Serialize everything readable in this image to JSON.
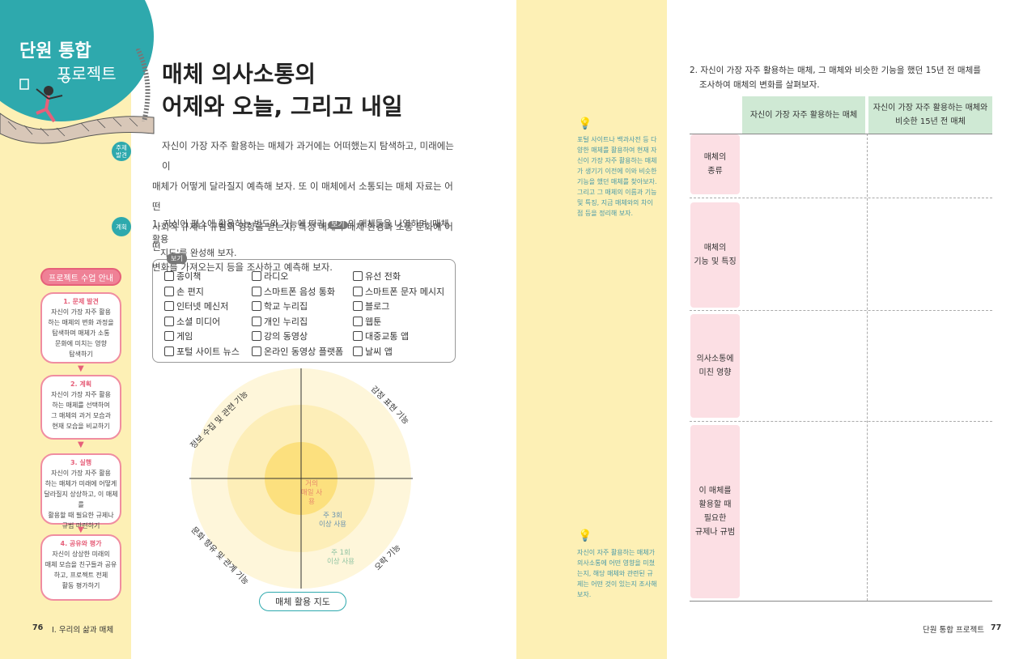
{
  "badge": {
    "line1": "단원 통합",
    "line2": "프로젝트"
  },
  "title": {
    "line1": "매체 의사소통의",
    "line2": "어제와 오늘, 그리고 내일"
  },
  "theme": {
    "tag": "주제\n발견",
    "lines": [
      "자신이 가장 자주 활용하는 매체가 과거에는 어떠했는지 탐색하고, 미래에는 이",
      "매체가 어떻게 달라질지 예측해 보자. 또 이 매체에서 소통되는 매체 자료는 어떤",
      "사회적 규제나 규범의 영향을 받는지, 특정 매체가 매체 환경과 소통 문화에 어떤",
      "변화를 가져오는지 등을 조사하고 예측해 보자."
    ]
  },
  "plan": {
    "tag": "계획",
    "q1_prefix": "1. 자신이 평소에 활용하는 빈도와 기능에 따라",
    "q1_bogi": "보기",
    "q1_suffix": "의 매체들을 나열하며 '매체 활용",
    "q1_line2": "지도'를 완성해 보자."
  },
  "bogi": {
    "label": "보기",
    "columns": [
      [
        "종이책",
        "손 편지",
        "인터넷 메신저",
        "소셜 미디어",
        "게임",
        "포털 사이트 뉴스"
      ],
      [
        "라디오",
        "스마트폰 음성 통화",
        "학교 누리집",
        "개인 누리집",
        "강의 동영상",
        "온라인 동영상 플랫폼"
      ],
      [
        "유선 전화",
        "스마트폰 문자 메시지",
        "블로그",
        "웹툰",
        "대중교통 앱",
        "날씨 앱"
      ]
    ]
  },
  "map": {
    "top_left": "정보 수집 및 관련 기능",
    "top_right": "감정 표현 기능",
    "bottom_left": "문화 향유 및 관계 기능",
    "bottom_right": "오락 기능",
    "ring1_a": "거의",
    "ring1_b": "매일 사용",
    "ring2_a": "주 3회",
    "ring2_b": "이상 사용",
    "ring3_a": "주 1회",
    "ring3_b": "이상 사용",
    "caption": "매체 활용 지도"
  },
  "guide": {
    "title": "프로젝트 수업 안내",
    "steps": [
      {
        "title": "1. 문제 발견",
        "lines": [
          "자신이 가장 자주 활용",
          "하는 매체의 변화 과정을",
          "탐색하며 매체가 소통",
          "문화에 미치는 영향",
          "탐색하기"
        ]
      },
      {
        "title": "2. 계획",
        "lines": [
          "자신이 가장 자주 활용",
          "하는 매체를 선택하여",
          "그 매체의 과거 모습과",
          "현재 모습을 비교하기"
        ]
      },
      {
        "title": "3. 실행",
        "lines": [
          "자신이 가장 자주 활용",
          "하는 매체가 미래에 어떻게",
          "달라질지 상상하고, 이 매체를",
          "활용할 때 필요한 규제나",
          "규범 마련하기"
        ]
      },
      {
        "title": "4. 공유와 평가",
        "lines": [
          "자신이 상상한 미래의",
          "매체 모습을 친구들과 공유",
          "하고, 프로젝트 전체",
          "활동 평가하기"
        ]
      }
    ]
  },
  "footer_left": {
    "page": "76",
    "chapter": "Ⅰ. 우리의 삶과 매체"
  },
  "footer_right": {
    "chapter": "단원 통합 프로젝트",
    "page": "77"
  },
  "notes": {
    "note1": [
      "포털 사이트나 백과사전 등 다",
      "양한 매체를 활용하여 현재 자",
      "신이 가장 자주 활용하는 매체",
      "가 생기기 이전에 이와 비슷한",
      "기능을 했던 매체를 찾아보자.",
      "그리고 그 매체의 이름과 기능",
      "및 특징, 지금 매체와의 차이",
      "점 등을 정리해 보자."
    ],
    "note2": [
      "자신이 자주 활용하는 매체가",
      "의사소통에 어떤 영향을 미쳤",
      "는지, 해당 매체와 관련된 규",
      "제는 어떤 것이 있는지 조사해",
      "보자."
    ]
  },
  "q2": {
    "line1": "2. 자신이 가장 자주 활용하는 매체, 그 매체와 비슷한 기능을 했던 15년 전 매체를",
    "line2": "조사하여 매체의 변화를 살펴보자.",
    "col1": "자신이 가장 자주 활용하는 매체",
    "col2a": "자신이 가장 자주 활용하는 매체와",
    "col2b": "비슷한 15년 전 매체",
    "rows": [
      [
        "매체의",
        "종류"
      ],
      [
        "매체의",
        "기능 및 특징"
      ],
      [
        "의사소통에",
        "미친 영향"
      ],
      [
        "이 매체를",
        "활용할 때",
        "필요한",
        "규제나 규범"
      ]
    ]
  }
}
